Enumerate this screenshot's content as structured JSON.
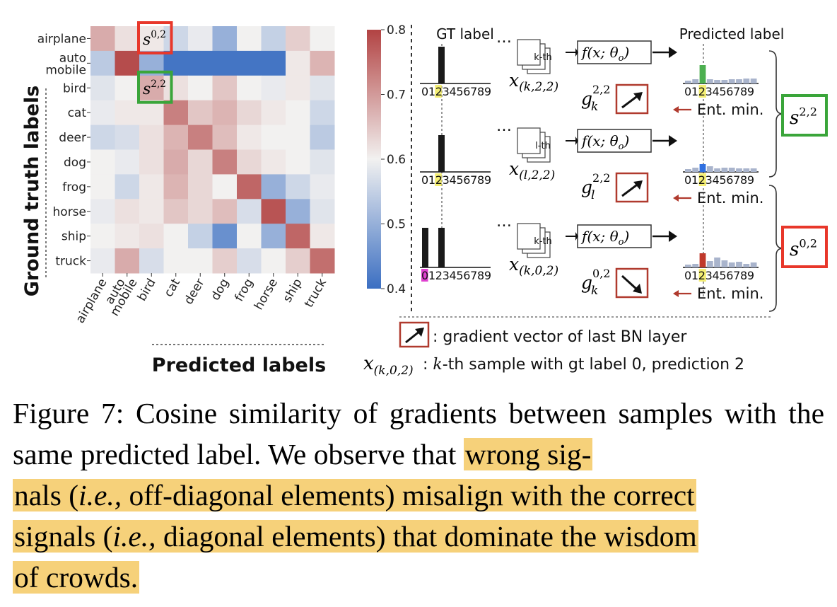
{
  "heatmap": {
    "y_title": "Ground truth labels",
    "x_title": "Predicted labels",
    "row_labels": [
      "airplane",
      "auto\nmobile",
      "bird",
      "cat",
      "deer",
      "dog",
      "frog",
      "horse",
      "ship",
      "truck"
    ],
    "col_labels": [
      "airplane",
      "auto\nmobile",
      "bird",
      "cat",
      "deer",
      "dog",
      "frog",
      "horse",
      "ship",
      "truck"
    ],
    "values": [
      [
        0.68,
        0.62,
        0.61,
        0.56,
        0.59,
        0.5,
        0.6,
        0.55,
        0.64,
        0.6
      ],
      [
        0.54,
        0.79,
        0.5,
        0.41,
        0.41,
        0.41,
        0.41,
        0.41,
        0.61,
        0.67
      ],
      [
        0.58,
        0.6,
        0.68,
        0.62,
        0.6,
        0.65,
        0.6,
        0.59,
        0.61,
        0.58
      ],
      [
        0.59,
        0.61,
        0.61,
        0.73,
        0.65,
        0.67,
        0.63,
        0.61,
        0.6,
        0.56
      ],
      [
        0.56,
        0.57,
        0.62,
        0.67,
        0.73,
        0.66,
        0.61,
        0.6,
        0.6,
        0.54
      ],
      [
        0.6,
        0.59,
        0.62,
        0.68,
        0.63,
        0.73,
        0.63,
        0.61,
        0.6,
        0.58
      ],
      [
        0.6,
        0.56,
        0.61,
        0.67,
        0.63,
        0.6,
        0.76,
        0.5,
        0.56,
        0.59
      ],
      [
        0.59,
        0.62,
        0.61,
        0.65,
        0.63,
        0.66,
        0.57,
        0.78,
        0.5,
        0.58
      ],
      [
        0.6,
        0.61,
        0.62,
        0.6,
        0.55,
        0.45,
        0.6,
        0.5,
        0.76,
        0.61
      ],
      [
        0.59,
        0.68,
        0.57,
        0.6,
        0.6,
        0.64,
        0.57,
        0.6,
        0.64,
        0.75
      ]
    ],
    "colorbar_ticks": [
      "0.8",
      "0.7",
      "0.6",
      "0.5",
      "0.4"
    ],
    "colorbar_range": [
      0.4,
      0.8
    ],
    "cell_marks": [
      {
        "row": 0,
        "col": 2,
        "base": "s",
        "sup": "0,2",
        "color": "#e8372a"
      },
      {
        "row": 2,
        "col": 2,
        "base": "s",
        "sup": "2,2",
        "color": "#3aa53a"
      }
    ]
  },
  "diagram": {
    "gt_header": "GT label",
    "pred_header": "Predicted label",
    "digits": "0123456789",
    "dots": "…",
    "model_label": "f(x; θ",
    "model_sub": "o",
    "ent_min": "Ent. min.",
    "rows": [
      {
        "sample_tag": "k-th",
        "x_sub": "(k,2,2)",
        "g_base": "g",
        "g_sub": "k",
        "g_sup": "2,2",
        "gt_index": 2,
        "pred_color": "#4caf50",
        "pred_index": 2,
        "arrow": "up"
      },
      {
        "sample_tag": "l-th",
        "x_sub": "(l,2,2)",
        "g_base": "g",
        "g_sub": "l",
        "g_sup": "2,2",
        "gt_index": 2,
        "pred_color": "#2f6fe0",
        "pred_index": 2,
        "arrow": "up"
      },
      {
        "sample_tag": "k-th",
        "x_sub": "(k,0,2)",
        "g_base": "g",
        "g_sub": "k",
        "g_sup": "0,2",
        "gt_index": 0,
        "pred_color": "#c0392b",
        "pred_index": 2,
        "arrow": "down"
      }
    ],
    "groups": [
      {
        "label_base": "s",
        "label_sup": "2,2",
        "color": "#3aa53a"
      },
      {
        "label_base": "s",
        "label_sup": "0,2",
        "color": "#e8372a"
      }
    ],
    "legend": {
      "arrow_text": ": gradient vector of last BN layer",
      "x_base": "x",
      "x_sub": "(k,0,2)",
      "x_text_pre": ": ",
      "x_text_k": "k",
      "x_text_post": "-th sample with gt label 0, prediction 2"
    }
  },
  "caption": {
    "prefix": "Figure 7:  Cosine similarity of gradients between samples with the same predicted label.  We observe that ",
    "hl_1": "wrong sig-",
    "hl_2a": "nals (",
    "hl_2_ie": "i.e.,",
    "hl_2b": " off-diagonal elements) misalign with the correct",
    "hl_3a": "signals (",
    "hl_3_ie": "i.e.,",
    "hl_3b": " diagonal elements) that dominate the wisdom",
    "hl_4": "of crowds."
  },
  "colors": {
    "cmap_low": "#3b6fc2",
    "cmap_mid": "#f2f1f0",
    "cmap_high": "#b24343",
    "highlight": "#f6d17a",
    "arrow_box": "#b03a2e",
    "pred_bars": "#a9b4cc",
    "gt_bar": "#1a1a1a",
    "gt_highlight": "#f5ef74",
    "gt_highlight_alt": "#e040d0"
  }
}
